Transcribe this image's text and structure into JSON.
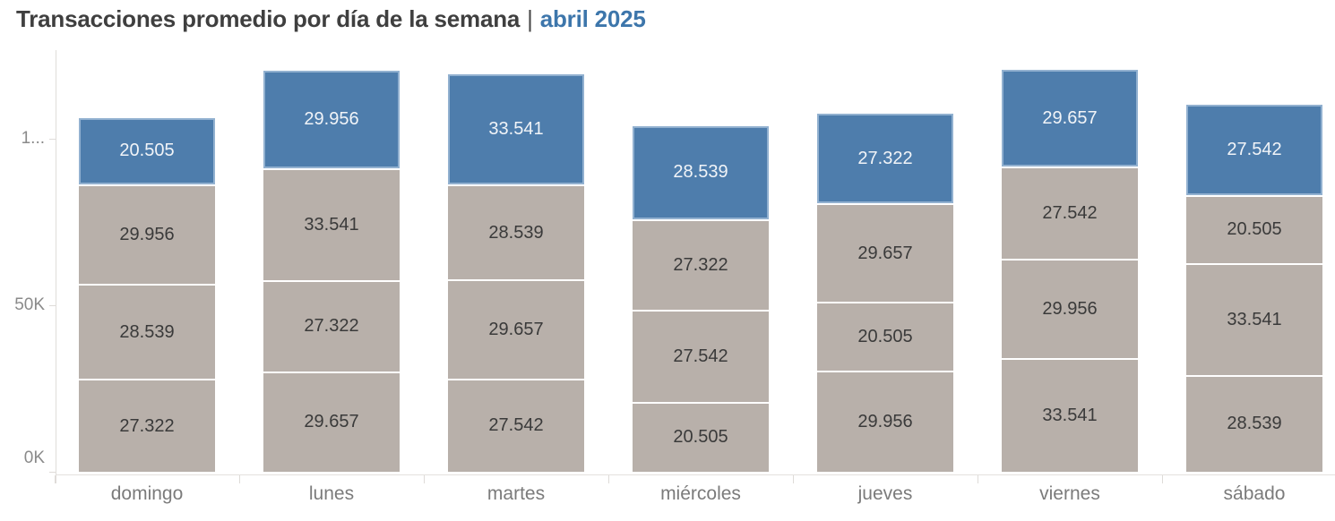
{
  "title": {
    "main": "Transacciones promedio por día de la semana",
    "separator": "|",
    "highlight": "abril 2025"
  },
  "colors": {
    "segment_blue": "#4e7dac",
    "segment_gray": "#b8b0aa",
    "label_on_blue": "#f1f4f8",
    "label_on_gray": "#3a3a3a",
    "title_text": "#3f3f3f",
    "title_highlight": "#3d76ab",
    "axis_text": "#8a8a8a",
    "axis_line": "#e0ddda"
  },
  "y_axis": {
    "ticks": [
      {
        "label": "1...",
        "value": 100000
      },
      {
        "label": "50K",
        "value": 50000
      },
      {
        "label": "0K",
        "value": 0
      }
    ]
  },
  "chart_data": {
    "type": "bar",
    "stacked": true,
    "title": "Transacciones promedio por día de la semana | abril 2025",
    "xlabel": "",
    "ylabel": "",
    "ylim": [
      0,
      126500
    ],
    "grid": false,
    "legend": false,
    "categories": [
      "domingo",
      "lunes",
      "martes",
      "miércoles",
      "jueves",
      "viernes",
      "sábado"
    ],
    "bars": [
      {
        "category": "domingo",
        "segments": [
          {
            "label": "20.505",
            "value": 20505,
            "color": "blue"
          },
          {
            "label": "29.956",
            "value": 29956,
            "color": "gray"
          },
          {
            "label": "28.539",
            "value": 28539,
            "color": "gray"
          },
          {
            "label": "27.322",
            "value": 27322,
            "color": "gray"
          }
        ]
      },
      {
        "category": "lunes",
        "segments": [
          {
            "label": "29.956",
            "value": 29956,
            "color": "blue"
          },
          {
            "label": "33.541",
            "value": 33541,
            "color": "gray"
          },
          {
            "label": "27.322",
            "value": 27322,
            "color": "gray"
          },
          {
            "label": "29.657",
            "value": 29657,
            "color": "gray"
          }
        ]
      },
      {
        "category": "martes",
        "segments": [
          {
            "label": "33.541",
            "value": 33541,
            "color": "blue"
          },
          {
            "label": "28.539",
            "value": 28539,
            "color": "gray"
          },
          {
            "label": "29.657",
            "value": 29657,
            "color": "gray"
          },
          {
            "label": "27.542",
            "value": 27542,
            "color": "gray"
          }
        ]
      },
      {
        "category": "miércoles",
        "segments": [
          {
            "label": "28.539",
            "value": 28539,
            "color": "blue"
          },
          {
            "label": "27.322",
            "value": 27322,
            "color": "gray"
          },
          {
            "label": "27.542",
            "value": 27542,
            "color": "gray"
          },
          {
            "label": "20.505",
            "value": 20505,
            "color": "gray"
          }
        ]
      },
      {
        "category": "jueves",
        "segments": [
          {
            "label": "27.322",
            "value": 27322,
            "color": "blue"
          },
          {
            "label": "29.657",
            "value": 29657,
            "color": "gray"
          },
          {
            "label": "20.505",
            "value": 20505,
            "color": "gray"
          },
          {
            "label": "29.956",
            "value": 29956,
            "color": "gray"
          }
        ]
      },
      {
        "category": "viernes",
        "segments": [
          {
            "label": "29.657",
            "value": 29657,
            "color": "blue"
          },
          {
            "label": "27.542",
            "value": 27542,
            "color": "gray"
          },
          {
            "label": "29.956",
            "value": 29956,
            "color": "gray"
          },
          {
            "label": "33.541",
            "value": 33541,
            "color": "gray"
          }
        ]
      },
      {
        "category": "sábado",
        "segments": [
          {
            "label": "27.542",
            "value": 27542,
            "color": "blue"
          },
          {
            "label": "20.505",
            "value": 20505,
            "color": "gray"
          },
          {
            "label": "33.541",
            "value": 33541,
            "color": "gray"
          },
          {
            "label": "28.539",
            "value": 28539,
            "color": "gray"
          }
        ]
      }
    ]
  }
}
